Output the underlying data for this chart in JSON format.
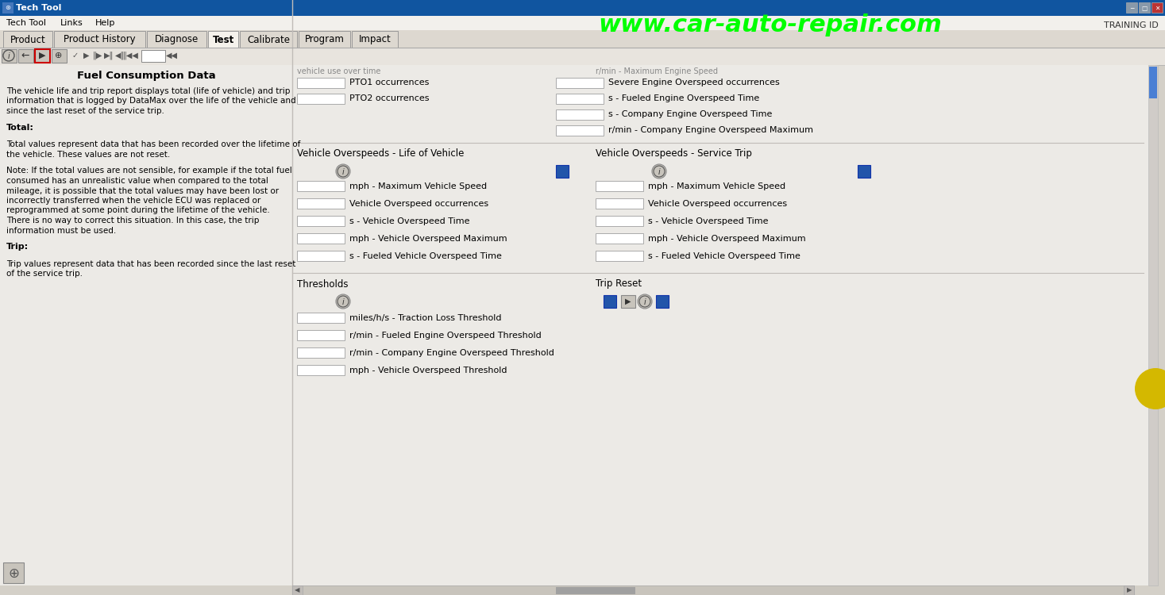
{
  "title_bar": "Tech Tool",
  "menu_items": [
    "Tech Tool",
    "Links",
    "Help"
  ],
  "tabs": [
    "Product",
    "Product History",
    "Diagnose",
    "Test",
    "Calibrate",
    "Program",
    "Impact"
  ],
  "active_tab": "Test",
  "watermark": "www.car-auto-repair.com",
  "training_id": "TRAINING ID",
  "section_title": "Fuel Consumption Data",
  "left_text_lines": [
    "The vehicle life and trip report displays total (life of vehicle) and trip",
    "information that is logged by DataMax over the life of the vehicle and",
    "since the last reset of the service trip.",
    "",
    "Total:",
    "",
    "Total values represent data that has been recorded over the lifetime of",
    "the vehicle. These values are not reset.",
    "",
    "Note: If the total values are not sensible, for example if the total fuel",
    "consumed has an unrealistic value when compared to the total",
    "mileage, it is possible that the total values may have been lost or",
    "incorrectly transferred when the vehicle ECU was replaced or",
    "reprogrammed at some point during the lifetime of the vehicle.",
    "There is no way to correct this situation. In this case, the trip",
    "information must be used.",
    "",
    "Trip:",
    "",
    "Trip values represent data that has been recorded since the last reset",
    "of the service trip."
  ],
  "top_right_labels": [
    "PTO1 occurrences",
    "PTO2 occurrences"
  ],
  "far_right_labels": [
    "Severe Engine Overspeed occurrences",
    "s - Fueled Engine Overspeed Time",
    "s - Company Engine Overspeed Time",
    "r/min - Company Engine Overspeed Maximum"
  ],
  "vehicle_overspeed_left_title": "Vehicle Overspeeds - Life of Vehicle",
  "vehicle_overspeed_left_labels": [
    "mph - Maximum Vehicle Speed",
    "Vehicle Overspeed occurrences",
    "s - Vehicle Overspeed Time",
    "mph - Vehicle Overspeed Maximum",
    "s - Fueled Vehicle Overspeed Time"
  ],
  "vehicle_overspeed_right_title": "Vehicle Overspeeds - Service Trip",
  "vehicle_overspeed_right_labels": [
    "mph - Maximum Vehicle Speed",
    "Vehicle Overspeed occurrences",
    "s - Vehicle Overspeed Time",
    "mph - Vehicle Overspeed Maximum",
    "s - Fueled Vehicle Overspeed Time"
  ],
  "thresholds_title": "Thresholds",
  "thresholds_labels": [
    "miles/h/s - Traction Loss Threshold",
    "r/min - Fueled Engine Overspeed Threshold",
    "r/min - Company Engine Overspeed Threshold",
    "mph - Vehicle Overspeed Threshold"
  ],
  "trip_reset_title": "Trip Reset",
  "bg_color": "#d4d0c8",
  "content_bg": "#e8e4de",
  "white": "#ffffff",
  "blue_button_color": "#2255aa",
  "yellow_circle_color": "#d4b800",
  "red_rect_color": "#cc0000",
  "scrollbar_blue": "#4a7fd4",
  "title_bar_color": "#1055a0"
}
